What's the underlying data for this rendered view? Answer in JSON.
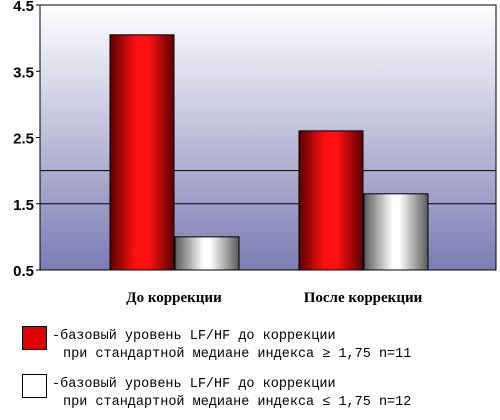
{
  "chart_data": {
    "type": "bar",
    "categories": [
      "До коррекции",
      "После коррекции"
    ],
    "series": [
      {
        "name": "-базовый уровень LF/HF до коррекции при стандартной медиане индекса ≥ 1,75 n=11",
        "color": "#e00000",
        "values": [
          4.05,
          2.6
        ]
      },
      {
        "name": "-базовый уровень LF/HF до коррекции при стандартной медиане индекса ≤ 1,75 n=12",
        "color": "#ffffff",
        "values": [
          1.0,
          1.65
        ]
      }
    ],
    "ylim": [
      0.5,
      4.5
    ],
    "yticks": [
      "0.5",
      "1.5",
      "2.5",
      "3.5",
      "4.5"
    ],
    "reference_lines": [
      1.5,
      2.0
    ],
    "grid": false,
    "legend_position": "bottom",
    "plot_background": [
      "#ffffff",
      "#7c7cb4"
    ]
  },
  "legend": [
    {
      "line1": "-базовый уровень LF/HF до коррекции",
      "line2": "при стандартной медиане индекса ≥ 1,75 n=11",
      "color": "#e00000"
    },
    {
      "line1": "-базовый уровень LF/HF до коррекции",
      "line2": "при стандартной медиане индекса ≤ 1,75 n=12",
      "color": "#ffffff"
    }
  ]
}
